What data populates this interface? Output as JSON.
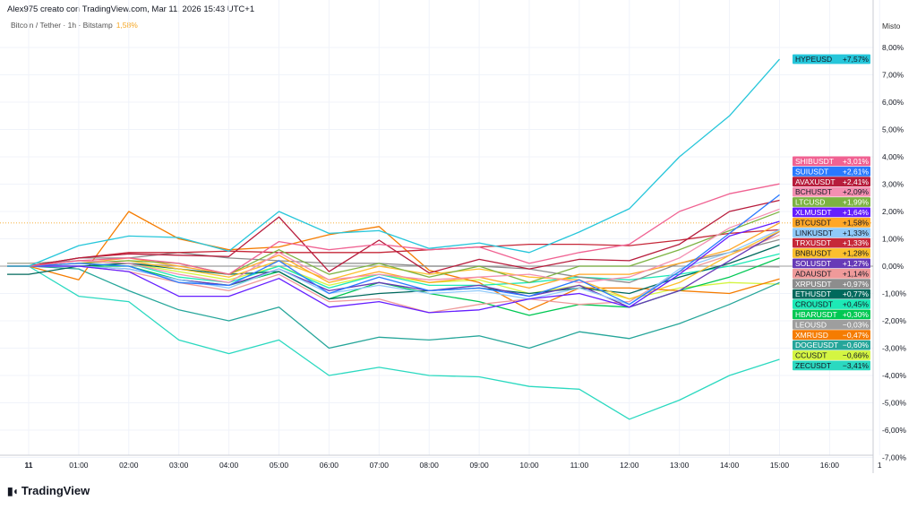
{
  "header": {
    "title": "Alex975 creato con TradingView.com, Mar 11, 2026 15:43 UTC+1",
    "symbol": "Bitcoin / Tether · 1h · Bitstamp",
    "symbol_change": "1,58%",
    "scale_mode": "Misto"
  },
  "logo": {
    "text": "TradingView"
  },
  "chart_data": {
    "type": "line",
    "x_unit": "hour",
    "x": [
      0,
      1,
      2,
      3,
      4,
      5,
      6,
      7,
      8,
      9,
      10,
      11,
      12,
      13,
      14,
      15
    ],
    "x_ticks": [
      "11",
      "01:00",
      "02:00",
      "03:00",
      "04:00",
      "05:00",
      "06:00",
      "07:00",
      "08:00",
      "09:00",
      "10:00",
      "11:00",
      "12:00",
      "13:00",
      "14:00",
      "15:00",
      "16:00",
      "1"
    ],
    "y_ticks": [
      "8,00%",
      "7,00%",
      "6,00%",
      "5,00%",
      "4,00%",
      "3,00%",
      "2,00%",
      "1,00%",
      "0,00%",
      "-1,00%",
      "-2,00%",
      "-3,00%",
      "-4,00%",
      "-5,00%",
      "-6,00%",
      "-7,00%"
    ],
    "ylim": [
      -7,
      8
    ],
    "grid": true,
    "reference_line": {
      "value": 1.58,
      "color": "#f5a623"
    },
    "zero_line_color": "#9e9e9e",
    "series": [
      {
        "name": "HYPEUSD",
        "label": "+7,57%",
        "color": "#26c6da",
        "text": "#131722",
        "values": [
          0,
          0.75,
          1.1,
          1.05,
          0.55,
          2.0,
          1.2,
          1.3,
          0.65,
          0.85,
          0.5,
          1.25,
          2.1,
          4.0,
          5.5,
          7.57
        ]
      },
      {
        "name": "SHIBUSDT",
        "label": "+3,01%",
        "color": "#f06292",
        "text": "#ffffff",
        "values": [
          0,
          0.2,
          0.3,
          0.1,
          -0.3,
          0.9,
          0.6,
          0.8,
          0.6,
          0.7,
          0.1,
          0.5,
          0.8,
          2.0,
          2.65,
          3.01
        ]
      },
      {
        "name": "SUIUSDT",
        "label": "+2,61%",
        "color": "#2979ff",
        "text": "#ffffff",
        "values": [
          0,
          0.1,
          0,
          -0.6,
          -0.7,
          0.2,
          -1.0,
          -0.4,
          -0.9,
          -0.8,
          -1.1,
          -0.5,
          -1.4,
          -0.2,
          1.2,
          2.61
        ]
      },
      {
        "name": "AVAXUSDT",
        "label": "+2,41%",
        "color": "#b71c3c",
        "text": "#ffffff",
        "values": [
          0,
          0.3,
          0.45,
          0.4,
          0.35,
          1.8,
          -0.2,
          0.95,
          -0.25,
          0.25,
          -0.1,
          0.25,
          0.2,
          0.8,
          2.0,
          2.41
        ]
      },
      {
        "name": "BCHUSDT",
        "label": "+2,09%",
        "color": "#f48fb1",
        "text": "#131722",
        "values": [
          0,
          0.2,
          0.1,
          -0.3,
          -0.6,
          0.5,
          -0.5,
          -0.3,
          -0.5,
          -0.4,
          -0.3,
          -0.6,
          -0.4,
          0.3,
          1.4,
          2.09
        ]
      },
      {
        "name": "LTCUSD",
        "label": "+1,99%",
        "color": "#7cb342",
        "text": "#ffffff",
        "values": [
          0,
          0.1,
          0.2,
          0.1,
          -0.3,
          0.6,
          -0.3,
          0.1,
          -0.4,
          0,
          -0.6,
          0,
          0,
          0.6,
          1.3,
          1.99
        ]
      },
      {
        "name": "XLMUSDT",
        "label": "+1,64%",
        "color": "#651fff",
        "text": "#ffffff",
        "values": [
          0,
          0,
          -0.2,
          -1.1,
          -1.1,
          -0.45,
          -1.5,
          -1.3,
          -1.7,
          -1.6,
          -1.2,
          -1.0,
          -1.5,
          -0.3,
          1.1,
          1.64
        ]
      },
      {
        "name": "BTCUSDT",
        "label": "+1,58%",
        "color": "#ffa726",
        "text": "#131722",
        "values": [
          0,
          0.1,
          0.3,
          0,
          -0.3,
          0.4,
          -0.6,
          -0.2,
          -0.6,
          -0.4,
          -0.8,
          -0.3,
          -0.3,
          0.1,
          0.6,
          1.58
        ]
      },
      {
        "name": "LINKUSDT",
        "label": "+1,33%",
        "color": "#90caf9",
        "text": "#131722",
        "values": [
          0,
          0,
          -0.1,
          -0.5,
          -0.8,
          -0.1,
          -1.0,
          -0.7,
          -1.0,
          -0.9,
          -1.2,
          -0.8,
          -1.4,
          -0.1,
          0.5,
          1.33
        ]
      },
      {
        "name": "TRXUSDT",
        "label": "+1,33%",
        "color": "#c62839",
        "text": "#ffffff",
        "values": [
          0,
          0.3,
          0.5,
          0.5,
          0.55,
          0.5,
          0.5,
          0.5,
          0.6,
          0.7,
          0.8,
          0.8,
          0.75,
          0.95,
          1.2,
          1.33
        ]
      },
      {
        "name": "BNBUSDT",
        "label": "+1,28%",
        "color": "#fbc02d",
        "text": "#131722",
        "values": [
          0,
          0.1,
          0.2,
          -0.1,
          -0.4,
          0.2,
          -0.5,
          0,
          -0.3,
          -0.1,
          -0.4,
          -0.5,
          -1.2,
          -0.6,
          0.4,
          1.28
        ]
      },
      {
        "name": "SOLUSDT",
        "label": "+1,27%",
        "color": "#673ab7",
        "text": "#ffffff",
        "values": [
          0,
          0,
          -0.1,
          -0.5,
          -0.7,
          -0.1,
          -0.9,
          -0.6,
          -0.9,
          -0.7,
          -1.1,
          -0.7,
          -1.5,
          -0.9,
          0.2,
          1.27
        ]
      },
      {
        "name": "ADAUSDT",
        "label": "+1,14%",
        "color": "#ef9a9a",
        "text": "#131722",
        "values": [
          0,
          0,
          -0.2,
          -0.6,
          -0.9,
          -0.3,
          -1.3,
          -1.2,
          -1.7,
          -1.4,
          -1.2,
          -1.4,
          -1.3,
          -0.2,
          0.4,
          1.14
        ]
      },
      {
        "name": "XRPUSDT",
        "label": "+0,97%",
        "color": "#8d8d8d",
        "text": "#ffffff",
        "values": [
          0,
          0.3,
          0.3,
          0.5,
          0.3,
          0.2,
          0.1,
          0.1,
          0,
          0,
          -0.1,
          -0.4,
          -0.6,
          0.1,
          0.5,
          0.97
        ]
      },
      {
        "name": "ETHUSDT",
        "label": "+0,77%",
        "color": "#00695c",
        "text": "#ffffff",
        "values": [
          -0.3,
          0,
          0.1,
          -0.1,
          -0.3,
          -0.2,
          -1.2,
          -1.0,
          -0.9,
          -0.8,
          -1.0,
          -0.8,
          -1.0,
          -0.4,
          0.1,
          0.77
        ]
      },
      {
        "name": "CROUSDT",
        "label": "+0,45%",
        "color": "#1de9b6",
        "text": "#131722",
        "values": [
          0,
          0,
          0.1,
          -0.4,
          -0.6,
          0,
          -0.8,
          -0.3,
          -0.7,
          -0.7,
          -0.6,
          -0.4,
          -0.5,
          -0.3,
          0,
          0.45
        ]
      },
      {
        "name": "HBARUSDT",
        "label": "+0,30%",
        "color": "#00c853",
        "text": "#ffffff",
        "values": [
          0,
          0,
          0,
          -0.5,
          -0.7,
          -0.2,
          -1.2,
          -0.6,
          -1.0,
          -1.3,
          -1.8,
          -1.4,
          -1.5,
          -0.9,
          -0.4,
          0.3
        ]
      },
      {
        "name": "LEOUSD",
        "label": "−0,03%",
        "color": "#9e9e9e",
        "text": "#ffffff",
        "values": [
          0.1,
          0.2,
          0.1,
          0,
          0,
          0,
          0,
          0,
          0,
          0,
          0,
          0,
          0,
          0,
          0,
          -0.03
        ]
      },
      {
        "name": "XMRUSD",
        "label": "−0,47%",
        "color": "#f57c00",
        "text": "#ffffff",
        "values": [
          0,
          -0.5,
          2.0,
          1.0,
          0.6,
          0.7,
          1.15,
          1.45,
          -0.15,
          -0.6,
          -1.6,
          -0.8,
          -0.8,
          -0.9,
          -1.0,
          -0.47
        ]
      },
      {
        "name": "DOGEUSDT",
        "label": "−0,60%",
        "color": "#26a69a",
        "text": "#ffffff",
        "values": [
          0,
          -0.1,
          -0.9,
          -1.6,
          -2.0,
          -1.5,
          -3.0,
          -2.6,
          -2.7,
          -2.55,
          -3.0,
          -2.4,
          -2.65,
          -2.1,
          -1.4,
          -0.6
        ]
      },
      {
        "name": "CCUSDT",
        "label": "−0,66%",
        "color": "#d4f542",
        "text": "#131722",
        "values": [
          0.1,
          0.2,
          0.1,
          -0.2,
          -0.5,
          0,
          -0.7,
          -0.3,
          -0.6,
          -0.5,
          -1.0,
          -0.7,
          -1.2,
          -0.8,
          -0.6,
          -0.66
        ]
      },
      {
        "name": "ZECUSDT",
        "label": "−3,41%",
        "color": "#2bd9c0",
        "text": "#131722",
        "values": [
          0,
          -1.1,
          -1.3,
          -2.7,
          -3.2,
          -2.7,
          -4.0,
          -3.7,
          -4.0,
          -4.05,
          -4.4,
          -4.5,
          -5.6,
          -4.9,
          -4.0,
          -3.41
        ]
      }
    ]
  }
}
